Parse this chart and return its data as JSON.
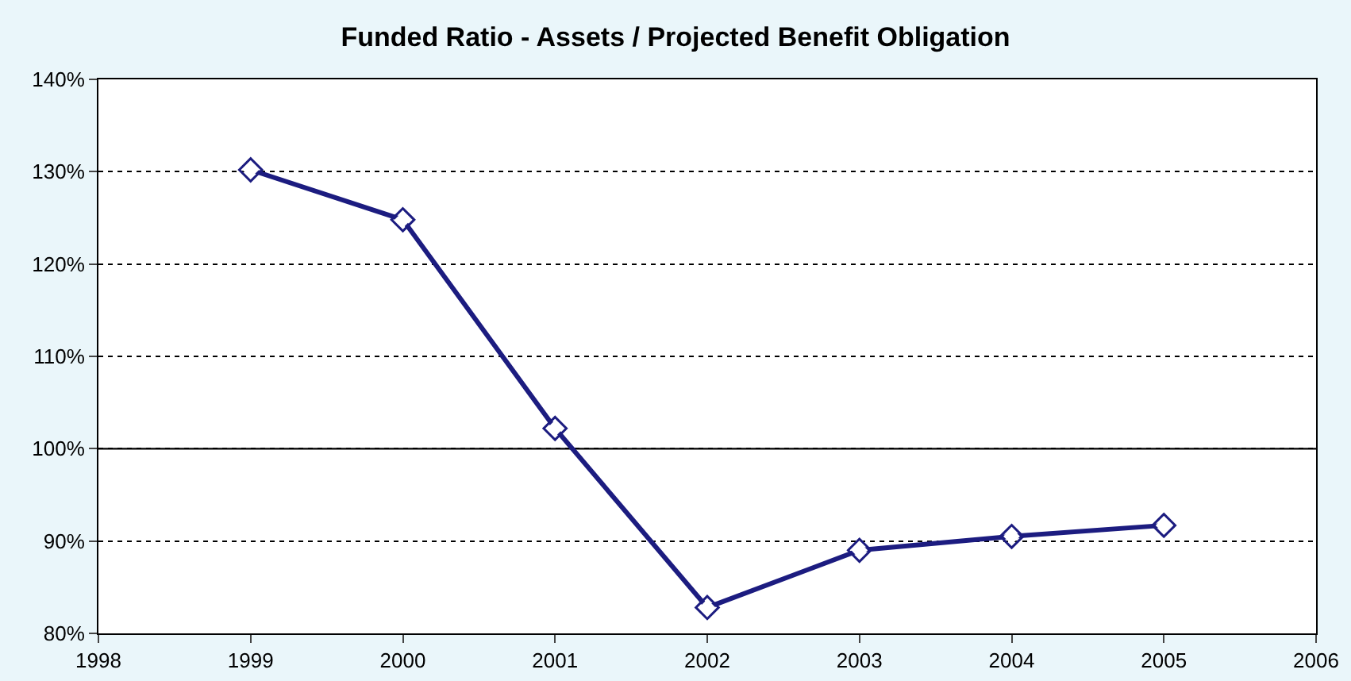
{
  "chart_data": {
    "type": "line",
    "title": "Funded Ratio - Assets / Projected Benefit Obligation",
    "x": [
      1999,
      2000,
      2001,
      2002,
      2003,
      2004,
      2005
    ],
    "series": [
      {
        "color": "#1c1c80",
        "values": [
          130.2,
          124.8,
          102.2,
          82.8,
          89,
          90.5,
          91.7
        ]
      }
    ],
    "xlim": [
      1998,
      2006
    ],
    "xticks": [
      1998,
      1999,
      2000,
      2001,
      2002,
      2003,
      2004,
      2005,
      2006
    ],
    "ylim": [
      80,
      140
    ],
    "yticks": [
      {
        "value": 80,
        "label": "80%"
      },
      {
        "value": 90,
        "label": "90%"
      },
      {
        "value": 100,
        "label": "100%"
      },
      {
        "value": 110,
        "label": "110%"
      },
      {
        "value": 120,
        "label": "120%"
      },
      {
        "value": 130,
        "label": "130%"
      },
      {
        "value": 140,
        "label": "140%"
      }
    ],
    "grid": "y",
    "marker": "diamond",
    "line_style": "solid",
    "ref_lines": [
      {
        "axis": "y",
        "value": 100,
        "color": "#000000",
        "line_style": "solid"
      }
    ]
  }
}
